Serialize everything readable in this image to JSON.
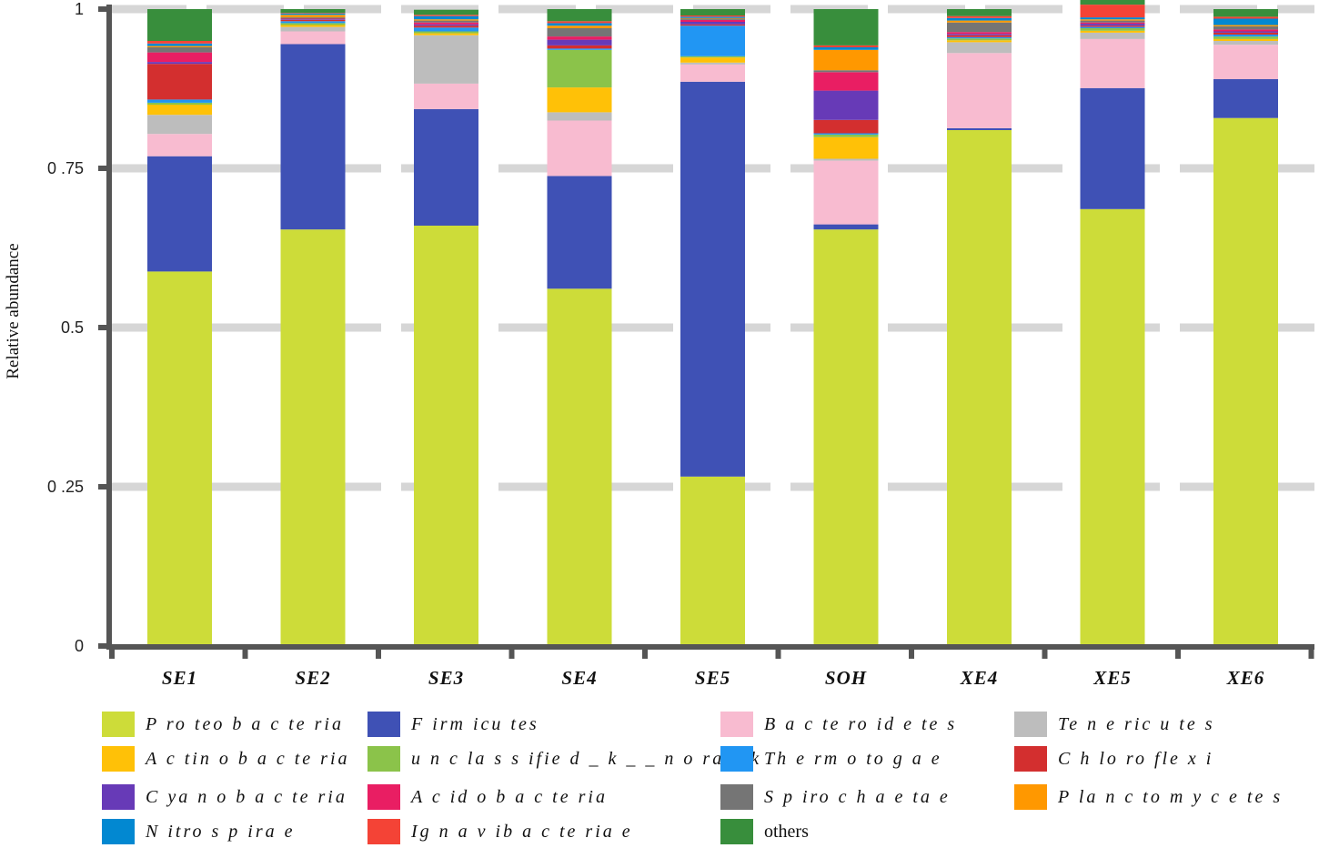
{
  "chart_data": {
    "type": "bar",
    "stacked": true,
    "title": "",
    "xlabel": "",
    "ylabel": "Relative abundance",
    "ylim": [
      0,
      1
    ],
    "yticks": [
      0,
      0.25,
      0.5,
      0.75,
      1
    ],
    "ytick_labels": [
      "0",
      "0 .25",
      "0.5",
      "0 .75",
      "1"
    ],
    "grid": true,
    "legend_position": "bottom",
    "categories": [
      "SE1",
      "SE2",
      "SE3",
      "SE4",
      "SE5",
      "SOH",
      "XE4",
      "XE5",
      "XE6"
    ],
    "series": [
      {
        "name": "Proteobacteria",
        "label": "P ro teo b a c te ria",
        "color": "#cddc39",
        "values": [
          0.588,
          0.654,
          0.66,
          0.561,
          0.266,
          0.654,
          0.81,
          0.686,
          0.829
        ]
      },
      {
        "name": "Firmicutes",
        "label": "F irm icu tes",
        "color": "#3f51b5",
        "values": [
          0.181,
          0.291,
          0.183,
          0.177,
          0.62,
          0.008,
          0.003,
          0.19,
          0.061
        ]
      },
      {
        "name": "Bacteroidetes",
        "label": "B a c te ro id e te s",
        "color": "#f8bbd0",
        "values": [
          0.035,
          0.02,
          0.04,
          0.087,
          0.027,
          0.1,
          0.118,
          0.077,
          0.054
        ]
      },
      {
        "name": "Tenericutes",
        "label": "Te n e ric u te s",
        "color": "#bdbdbd",
        "values": [
          0.03,
          0.007,
          0.076,
          0.013,
          0.003,
          0.003,
          0.017,
          0.01,
          0.006
        ]
      },
      {
        "name": "Actinobacteria",
        "label": "A c tin o b a c te ria",
        "color": "#ffc107",
        "values": [
          0.016,
          0.003,
          0.003,
          0.039,
          0.008,
          0.034,
          0.003,
          0.003,
          0.003
        ]
      },
      {
        "name": "unclassified_k__norank",
        "label": "u n c la s s ifie d _ k _ _ n o ra n k",
        "color": "#8bc34a",
        "values": [
          0.003,
          0.003,
          0.003,
          0.059,
          0.002,
          0.004,
          0.003,
          0.004,
          0.004
        ]
      },
      {
        "name": "Thermotogae",
        "label": "Th e rm o to g a e",
        "color": "#2196f3",
        "values": [
          0.005,
          0.003,
          0.006,
          0.002,
          0.048,
          0.002,
          0.002,
          0.002,
          0.003
        ]
      },
      {
        "name": "Chloroflexi",
        "label": "C h lo ro fle x i",
        "color": "#d32f2f",
        "values": [
          0.056,
          0.002,
          0.003,
          0.005,
          0.002,
          0.021,
          0.003,
          0.002,
          0.003
        ]
      },
      {
        "name": "Cyanobacteria",
        "label": "C ya n o b a c te ria",
        "color": "#673ab7",
        "values": [
          0.003,
          0.001,
          0.002,
          0.009,
          0.004,
          0.046,
          0.002,
          0.003,
          0.002
        ]
      },
      {
        "name": "Acidobacteria",
        "label": "A c id o b a c te ria",
        "color": "#e91e63",
        "values": [
          0.015,
          0.001,
          0.003,
          0.005,
          0.003,
          0.029,
          0.003,
          0.002,
          0.003
        ]
      },
      {
        "name": "Spirochaetae",
        "label": "S p iro c h a e ta e",
        "color": "#757575",
        "values": [
          0.008,
          0.002,
          0.003,
          0.013,
          0.002,
          0.003,
          0.015,
          0.003,
          0.005
        ]
      },
      {
        "name": "Planctomycetes",
        "label": "P la n c to m y c e te s",
        "color": "#ff9800",
        "values": [
          0.002,
          0.004,
          0.002,
          0.004,
          0.001,
          0.032,
          0.003,
          0.002,
          0.002
        ]
      },
      {
        "name": "Nitrospirae",
        "label": "N itro s p ira e",
        "color": "#0288d1",
        "values": [
          0.004,
          0.002,
          0.005,
          0.004,
          0.002,
          0.004,
          0.004,
          0.003,
          0.01
        ]
      },
      {
        "name": "Ignavibacteriae",
        "label": "Ig n a v ib a c te ria e",
        "color": "#f44336",
        "values": [
          0.004,
          0.001,
          0.002,
          0.003,
          0.002,
          0.003,
          0.003,
          0.02,
          0.003
        ]
      },
      {
        "name": "others",
        "label": "others",
        "color": "#388e3c",
        "values": [
          0.05,
          0.006,
          0.008,
          0.019,
          0.01,
          0.057,
          0.011,
          0.009,
          0.012
        ]
      }
    ]
  }
}
